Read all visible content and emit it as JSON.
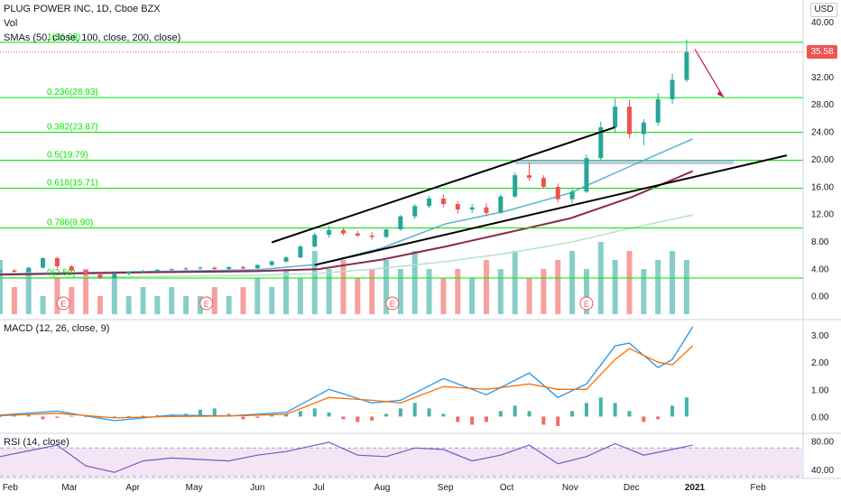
{
  "header": {
    "symbol_line": "PLUG POWER INC, 1D, Cboe BZX",
    "volume_label": "Vol",
    "sma_label": "SMAs (50, close, 100, close, 200, close)",
    "currency": "USD",
    "last_price": "35.58"
  },
  "macd": {
    "label": "MACD (12, 26, close, 9)"
  },
  "rsi": {
    "label": "RSI (14, close)"
  },
  "colors": {
    "up": "#26a69a",
    "down": "#ef5350",
    "fib": "#00e600",
    "trend": "#000000",
    "sma50": "#5ab0d6",
    "sma100": "#8b2a4a",
    "sma200": "#b7e0cc",
    "macd_line": "#2196f3",
    "signal_line": "#ff6d00",
    "rsi_line": "#7e57c2",
    "rsi_band": "#f3e5f5",
    "arrow": "#c2185b"
  },
  "chart_data": [
    {
      "type": "candlestick",
      "title": "PLUG POWER INC, 1D, Cboe BZX",
      "x_tick_labels": [
        "Feb",
        "Mar",
        "Apr",
        "May",
        "Jun",
        "Jul",
        "Aug",
        "Sep",
        "Oct",
        "Nov",
        "Dec",
        "2021",
        "Feb"
      ],
      "x_tick_dates": [
        "2020-02-01",
        "2020-03-01",
        "2020-04-01",
        "2020-05-01",
        "2020-06-01",
        "2020-07-01",
        "2020-08-01",
        "2020-09-01",
        "2020-10-01",
        "2020-11-01",
        "2020-12-01",
        "2021-01-01",
        "2021-02-01"
      ],
      "x_range": [
        "2020-01-27",
        "2021-02-23"
      ],
      "y_ticks": [
        0,
        4,
        8,
        12,
        16,
        20,
        24,
        28,
        32,
        36,
        40
      ],
      "y_tick_labels": [
        "0.00",
        "4.00",
        "8.00",
        "12.00",
        "16.00",
        "20.00",
        "24.00",
        "28.00",
        "32.00",
        "",
        "40.00"
      ],
      "ylim": [
        -3.2,
        40.8
      ],
      "ohlc": [
        [
          "2020-01-27",
          3.6,
          3.9,
          3.4,
          3.7
        ],
        [
          "2020-02-03",
          3.7,
          3.9,
          3.4,
          3.5
        ],
        [
          "2020-02-10",
          3.5,
          4.2,
          3.4,
          4.1
        ],
        [
          "2020-02-17",
          4.1,
          5.6,
          4.0,
          5.5
        ],
        [
          "2020-02-24",
          5.5,
          5.7,
          4.0,
          4.3
        ],
        [
          "2020-03-02",
          4.3,
          4.5,
          3.5,
          3.7
        ],
        [
          "2020-03-09",
          3.7,
          3.8,
          2.9,
          3.1
        ],
        [
          "2020-03-16",
          3.1,
          3.3,
          2.4,
          2.6
        ],
        [
          "2020-03-23",
          2.6,
          3.4,
          2.5,
          3.2
        ],
        [
          "2020-03-30",
          3.2,
          3.6,
          3.0,
          3.5
        ],
        [
          "2020-04-06",
          3.5,
          3.8,
          3.3,
          3.6
        ],
        [
          "2020-04-13",
          3.6,
          3.9,
          3.4,
          3.8
        ],
        [
          "2020-04-20",
          3.8,
          4.0,
          3.6,
          3.9
        ],
        [
          "2020-04-27",
          3.9,
          4.2,
          3.7,
          4.0
        ],
        [
          "2020-05-04",
          4.0,
          4.3,
          3.8,
          4.1
        ],
        [
          "2020-05-11",
          4.1,
          4.3,
          3.8,
          3.9
        ],
        [
          "2020-05-18",
          3.9,
          4.3,
          3.8,
          4.2
        ],
        [
          "2020-05-25",
          4.2,
          4.4,
          3.9,
          4.0
        ],
        [
          "2020-06-01",
          4.0,
          4.6,
          3.9,
          4.5
        ],
        [
          "2020-06-08",
          4.5,
          5.2,
          4.3,
          5.0
        ],
        [
          "2020-06-15",
          5.0,
          5.8,
          4.8,
          5.6
        ],
        [
          "2020-06-22",
          5.6,
          7.4,
          5.5,
          7.2
        ],
        [
          "2020-06-29",
          7.2,
          9.2,
          7.0,
          8.9
        ],
        [
          "2020-07-06",
          8.9,
          10.2,
          8.5,
          9.6
        ],
        [
          "2020-07-13",
          9.6,
          9.9,
          8.8,
          9.1
        ],
        [
          "2020-07-20",
          9.1,
          9.5,
          8.6,
          8.8
        ],
        [
          "2020-07-27",
          8.8,
          9.3,
          8.2,
          8.6
        ],
        [
          "2020-08-03",
          8.6,
          9.8,
          8.4,
          9.7
        ],
        [
          "2020-08-10",
          9.7,
          11.8,
          9.5,
          11.6
        ],
        [
          "2020-08-17",
          11.6,
          13.4,
          11.2,
          13.1
        ],
        [
          "2020-08-24",
          13.1,
          14.6,
          12.8,
          14.2
        ],
        [
          "2020-08-31",
          14.2,
          14.8,
          12.9,
          13.4
        ],
        [
          "2020-09-07",
          13.4,
          13.8,
          12.0,
          12.6
        ],
        [
          "2020-09-14",
          12.6,
          13.4,
          12.1,
          12.9
        ],
        [
          "2020-09-21",
          12.9,
          13.5,
          11.6,
          12.1
        ],
        [
          "2020-09-28",
          12.1,
          14.8,
          12.0,
          14.5
        ],
        [
          "2020-10-05",
          14.5,
          18.0,
          14.3,
          17.6
        ],
        [
          "2020-10-12",
          17.6,
          19.5,
          16.8,
          17.2
        ],
        [
          "2020-10-19",
          17.2,
          17.6,
          15.6,
          15.9
        ],
        [
          "2020-10-26",
          15.9,
          16.4,
          13.6,
          14.1
        ],
        [
          "2020-11-02",
          14.1,
          15.6,
          13.5,
          15.2
        ],
        [
          "2020-11-09",
          15.2,
          20.6,
          15.0,
          20.1
        ],
        [
          "2020-11-16",
          20.1,
          25.4,
          19.8,
          24.6
        ],
        [
          "2020-11-23",
          24.6,
          28.8,
          23.8,
          27.6
        ],
        [
          "2020-11-30",
          27.6,
          28.6,
          23.0,
          23.6
        ],
        [
          "2020-12-07",
          23.6,
          25.8,
          22.0,
          25.3
        ],
        [
          "2020-12-14",
          25.3,
          29.6,
          24.8,
          28.7
        ],
        [
          "2020-12-21",
          28.7,
          32.4,
          28.0,
          31.5
        ],
        [
          "2020-12-28",
          31.5,
          37.4,
          31.2,
          35.58
        ]
      ],
      "smas": [
        {
          "period": 50,
          "points": [
            [
              "2020-01-27",
              3.2
            ],
            [
              "2020-04-01",
              3.5
            ],
            [
              "2020-06-01",
              3.8
            ],
            [
              "2020-07-01",
              4.6
            ],
            [
              "2020-08-01",
              7.0
            ],
            [
              "2020-09-01",
              10.5
            ],
            [
              "2020-10-01",
              12.4
            ],
            [
              "2020-11-01",
              15.0
            ],
            [
              "2020-12-01",
              19.0
            ],
            [
              "2020-12-31",
              22.9
            ]
          ]
        },
        {
          "period": 100,
          "points": [
            [
              "2020-01-27",
              3.1
            ],
            [
              "2020-04-01",
              3.4
            ],
            [
              "2020-06-01",
              3.6
            ],
            [
              "2020-07-01",
              3.9
            ],
            [
              "2020-08-01",
              5.3
            ],
            [
              "2020-09-01",
              7.2
            ],
            [
              "2020-10-01",
              9.2
            ],
            [
              "2020-11-01",
              11.3
            ],
            [
              "2020-12-01",
              14.4
            ],
            [
              "2020-12-31",
              18.2
            ]
          ]
        },
        {
          "period": 200,
          "points": [
            [
              "2020-01-27",
              2.6
            ],
            [
              "2020-04-01",
              2.8
            ],
            [
              "2020-06-01",
              3.0
            ],
            [
              "2020-07-01",
              3.3
            ],
            [
              "2020-08-01",
              4.0
            ],
            [
              "2020-09-01",
              5.0
            ],
            [
              "2020-10-01",
              6.2
            ],
            [
              "2020-11-01",
              7.8
            ],
            [
              "2020-12-01",
              9.9
            ],
            [
              "2020-12-31",
              11.8
            ]
          ]
        }
      ],
      "fib_levels": [
        {
          "label": "1(36.99)",
          "price": 36.99
        },
        {
          "label": "0.236(28.93)",
          "price": 28.93
        },
        {
          "label": "0.382(23.87)",
          "price": 23.87
        },
        {
          "label": "0.5(19.79)",
          "price": 19.79
        },
        {
          "label": "0.618(15.71)",
          "price": 15.71
        },
        {
          "label": "0.786(9.90)",
          "price": 9.9
        },
        {
          "label": "0(2.59)",
          "price": 2.59
        }
      ],
      "trend_lines": [
        {
          "from": [
            "2020-06-08",
            7.8
          ],
          "to": [
            "2020-11-23",
            24.6
          ]
        },
        {
          "from": [
            "2020-06-29",
            4.5
          ],
          "to": [
            "2021-02-15",
            20.5
          ]
        }
      ],
      "zone": {
        "from": "2020-10-05",
        "to": "2021-01-20",
        "low": 19.2,
        "high": 19.8
      },
      "arrow": {
        "from": [
          "2021-01-01",
          36.0
        ],
        "to": [
          "2021-01-15",
          29.0
        ]
      },
      "earnings_markers": [
        "2020-02-27",
        "2020-05-07",
        "2020-08-06",
        "2020-11-09"
      ],
      "volume": {
        "bars": [
          6,
          3,
          5,
          2,
          4,
          3,
          5,
          2,
          4,
          2,
          3,
          2,
          3,
          2,
          2,
          3,
          2,
          3,
          4,
          3,
          5,
          4,
          7,
          5,
          6,
          4,
          5,
          6,
          5,
          7,
          5,
          4,
          5,
          4,
          6,
          5,
          7,
          4,
          5,
          6,
          7,
          5,
          8,
          6,
          7,
          5,
          6,
          7,
          6
        ],
        "up": [
          1,
          0,
          1,
          1,
          0,
          0,
          0,
          0,
          1,
          1,
          1,
          1,
          1,
          1,
          1,
          0,
          1,
          0,
          1,
          1,
          1,
          1,
          1,
          1,
          0,
          0,
          0,
          1,
          1,
          1,
          1,
          0,
          0,
          1,
          0,
          1,
          1,
          0,
          0,
          0,
          1,
          1,
          1,
          1,
          0,
          1,
          1,
          1,
          1
        ]
      }
    },
    {
      "type": "line",
      "title": "MACD (12, 26, close, 9)",
      "y_ticks": [
        0,
        1,
        2,
        3
      ],
      "y_tick_labels": [
        "0.00",
        "1.00",
        "2.00",
        "3.00"
      ],
      "ylim": [
        -0.55,
        3.5
      ],
      "series": [
        {
          "role": "macd",
          "points": [
            [
              "2020-01-27",
              0.05
            ],
            [
              "2020-02-24",
              0.2
            ],
            [
              "2020-03-23",
              -0.15
            ],
            [
              "2020-04-20",
              0.05
            ],
            [
              "2020-05-18",
              0.02
            ],
            [
              "2020-06-15",
              0.15
            ],
            [
              "2020-07-06",
              1.0
            ],
            [
              "2020-07-27",
              0.5
            ],
            [
              "2020-08-10",
              0.6
            ],
            [
              "2020-08-31",
              1.4
            ],
            [
              "2020-09-21",
              0.8
            ],
            [
              "2020-10-12",
              1.6
            ],
            [
              "2020-10-26",
              0.7
            ],
            [
              "2020-11-09",
              1.2
            ],
            [
              "2020-11-23",
              2.6
            ],
            [
              "2020-11-30",
              2.7
            ],
            [
              "2020-12-14",
              1.8
            ],
            [
              "2020-12-21",
              2.1
            ],
            [
              "2020-12-31",
              3.3
            ]
          ]
        },
        {
          "role": "signal",
          "points": [
            [
              "2020-01-27",
              0.03
            ],
            [
              "2020-02-24",
              0.12
            ],
            [
              "2020-03-23",
              -0.05
            ],
            [
              "2020-04-20",
              0.0
            ],
            [
              "2020-05-18",
              0.02
            ],
            [
              "2020-06-15",
              0.08
            ],
            [
              "2020-07-06",
              0.7
            ],
            [
              "2020-07-27",
              0.6
            ],
            [
              "2020-08-10",
              0.5
            ],
            [
              "2020-08-31",
              1.1
            ],
            [
              "2020-09-21",
              1.0
            ],
            [
              "2020-10-12",
              1.2
            ],
            [
              "2020-10-26",
              1.0
            ],
            [
              "2020-11-09",
              1.0
            ],
            [
              "2020-11-23",
              2.1
            ],
            [
              "2020-11-30",
              2.5
            ],
            [
              "2020-12-14",
              2.0
            ],
            [
              "2020-12-21",
              1.9
            ],
            [
              "2020-12-31",
              2.6
            ]
          ]
        }
      ],
      "histogram": [
        0.02,
        0.08,
        0.05,
        -0.1,
        -0.05,
        0.03,
        0.02,
        0.0,
        0.0,
        0.02,
        0.03,
        0.05,
        0.07,
        0.1,
        0.25,
        0.3,
        0.1,
        -0.1,
        -0.05,
        0.05,
        0.1,
        0.2,
        0.3,
        0.15,
        -0.1,
        -0.2,
        -0.15,
        0.1,
        0.3,
        0.5,
        0.3,
        0.1,
        -0.2,
        -0.3,
        -0.2,
        0.2,
        0.4,
        0.2,
        -0.3,
        -0.35,
        0.2,
        0.5,
        0.7,
        0.5,
        0.2,
        -0.2,
        -0.1,
        0.4,
        0.7
      ]
    },
    {
      "type": "line",
      "title": "RSI (14, close)",
      "y_ticks": [
        40,
        80
      ],
      "y_tick_labels": [
        "40.00",
        "80.00"
      ],
      "ylim": [
        30,
        88
      ],
      "band": [
        30,
        70
      ],
      "series": [
        {
          "role": "rsi",
          "points": [
            [
              "2020-01-27",
              58
            ],
            [
              "2020-02-10",
              66
            ],
            [
              "2020-02-24",
              74
            ],
            [
              "2020-03-09",
              45
            ],
            [
              "2020-03-23",
              36
            ],
            [
              "2020-04-06",
              52
            ],
            [
              "2020-04-20",
              56
            ],
            [
              "2020-05-04",
              54
            ],
            [
              "2020-05-18",
              52
            ],
            [
              "2020-06-01",
              60
            ],
            [
              "2020-06-15",
              65
            ],
            [
              "2020-07-06",
              78
            ],
            [
              "2020-07-20",
              60
            ],
            [
              "2020-08-03",
              58
            ],
            [
              "2020-08-17",
              70
            ],
            [
              "2020-08-31",
              68
            ],
            [
              "2020-09-14",
              52
            ],
            [
              "2020-09-28",
              60
            ],
            [
              "2020-10-12",
              74
            ],
            [
              "2020-10-26",
              48
            ],
            [
              "2020-11-09",
              58
            ],
            [
              "2020-11-23",
              76
            ],
            [
              "2020-12-07",
              60
            ],
            [
              "2020-12-21",
              68
            ],
            [
              "2020-12-31",
              74
            ]
          ]
        }
      ]
    }
  ]
}
